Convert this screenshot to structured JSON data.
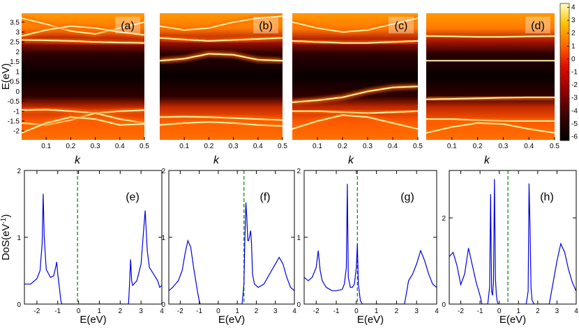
{
  "chart_data": [
    {
      "id": "a",
      "type": "heatmap",
      "panel_label": "(a)",
      "xlabel": "k",
      "ylabel": "E(eV)",
      "xlim": [
        0,
        0.5
      ],
      "ylim": [
        -2.45,
        3.95
      ],
      "x_ticks": [
        "0.1",
        "0.2",
        "0.3",
        "0.4",
        "0.5"
      ],
      "y_ticks": [
        "-2",
        "-1.5",
        "-1",
        "-0.5",
        "0",
        "0.5",
        "1",
        "1.5",
        "2",
        "2.5",
        "3",
        "3.5"
      ],
      "colorbar": {
        "range": [
          -6.3,
          4.3
        ],
        "ticks": [
          "-6",
          "-5",
          "-4",
          "-3",
          "-2",
          "-1",
          "0",
          "1",
          "2",
          "3",
          "4"
        ]
      },
      "bands": [
        {
          "k": [
            0,
            0.1,
            0.2,
            0.3,
            0.4,
            0.5
          ],
          "E": [
            2.6,
            2.58,
            2.55,
            2.5,
            2.47,
            2.45
          ]
        },
        {
          "k": [
            0,
            0.1,
            0.2,
            0.3,
            0.4,
            0.5
          ],
          "E": [
            -0.95,
            -0.92,
            -1.0,
            -1.1,
            -1.0,
            -0.95
          ]
        },
        {
          "k": [
            0,
            0.1,
            0.2,
            0.3,
            0.4,
            0.5
          ],
          "E": [
            -1.6,
            -1.7,
            -1.45,
            -1.1,
            -1.4,
            -1.6
          ]
        },
        {
          "k": [
            0,
            0.1,
            0.2,
            0.3,
            0.4,
            0.5
          ],
          "E": [
            -2.1,
            -1.6,
            -1.3,
            -1.4,
            -1.7,
            -1.65
          ]
        },
        {
          "k": [
            0,
            0.1,
            0.2,
            0.3,
            0.4,
            0.5
          ],
          "E": [
            3.7,
            3.4,
            3.05,
            2.9,
            3.2,
            3.5
          ]
        },
        {
          "k": [
            0,
            0.1,
            0.2,
            0.3,
            0.4,
            0.5
          ],
          "E": [
            2.8,
            3.1,
            3.3,
            3.2,
            3.0,
            2.85
          ]
        }
      ]
    },
    {
      "id": "b",
      "type": "heatmap",
      "panel_label": "(b)",
      "xlabel": "k",
      "xlim": [
        0,
        0.5
      ],
      "ylim": [
        -2.45,
        3.95
      ],
      "x_ticks": [
        "0.1",
        "0.2",
        "0.3",
        "0.4",
        "0.5"
      ],
      "bands": [
        {
          "k": [
            0,
            0.1,
            0.2,
            0.3,
            0.4,
            0.5
          ],
          "E": [
            1.55,
            1.65,
            1.9,
            1.85,
            1.6,
            1.55
          ]
        },
        {
          "k": [
            0,
            0.1,
            0.2,
            0.3,
            0.4,
            0.5
          ],
          "E": [
            2.7,
            2.62,
            2.55,
            2.6,
            2.65,
            2.7
          ]
        },
        {
          "k": [
            0,
            0.1,
            0.2,
            0.3,
            0.4,
            0.5
          ],
          "E": [
            -1.3,
            -1.28,
            -1.3,
            -1.35,
            -1.4,
            -1.45
          ]
        },
        {
          "k": [
            0,
            0.1,
            0.2,
            0.3,
            0.4,
            0.5
          ],
          "E": [
            -1.7,
            -1.6,
            -1.55,
            -1.6,
            -1.7,
            -1.75
          ]
        },
        {
          "k": [
            0,
            0.1,
            0.2,
            0.3,
            0.4,
            0.5
          ],
          "E": [
            3.3,
            3.1,
            3.2,
            3.5,
            3.7,
            3.8
          ]
        }
      ]
    },
    {
      "id": "c",
      "type": "heatmap",
      "panel_label": "(c)",
      "xlabel": "k",
      "xlim": [
        0,
        0.5
      ],
      "ylim": [
        -2.45,
        3.95
      ],
      "x_ticks": [
        "0.1",
        "0.2",
        "0.3",
        "0.4",
        "0.5"
      ],
      "bands": [
        {
          "k": [
            0,
            0.1,
            0.2,
            0.3,
            0.4,
            0.5
          ],
          "E": [
            -0.55,
            -0.45,
            -0.3,
            0.0,
            0.2,
            0.25
          ]
        },
        {
          "k": [
            0,
            0.1,
            0.2,
            0.3,
            0.4,
            0.5
          ],
          "E": [
            2.55,
            2.5,
            2.45,
            2.45,
            2.5,
            2.55
          ]
        },
        {
          "k": [
            0,
            0.1,
            0.2,
            0.3,
            0.4,
            0.5
          ],
          "E": [
            -1.0,
            -1.0,
            -1.05,
            -1.1,
            -1.05,
            -1.0
          ]
        },
        {
          "k": [
            0,
            0.1,
            0.2,
            0.3,
            0.4,
            0.5
          ],
          "E": [
            -1.9,
            -1.5,
            -1.2,
            -1.3,
            -1.6,
            -1.9
          ]
        },
        {
          "k": [
            0,
            0.1,
            0.2,
            0.3,
            0.4,
            0.5
          ],
          "E": [
            3.5,
            3.2,
            3.0,
            3.1,
            3.4,
            3.7
          ]
        }
      ]
    },
    {
      "id": "d",
      "type": "heatmap",
      "panel_label": "(d)",
      "xlabel": "k",
      "xlim": [
        0,
        0.5
      ],
      "ylim": [
        -2.45,
        3.95
      ],
      "x_ticks": [
        "0.1",
        "0.2",
        "0.3",
        "0.4",
        "0.5"
      ],
      "bands": [
        {
          "k": [
            0,
            0.1,
            0.2,
            0.3,
            0.4,
            0.5
          ],
          "E": [
            1.55,
            1.55,
            1.55,
            1.55,
            1.55,
            1.55
          ]
        },
        {
          "k": [
            0,
            0.1,
            0.2,
            0.3,
            0.4,
            0.5
          ],
          "E": [
            -0.4,
            -0.38,
            -0.35,
            -0.32,
            -0.3,
            -0.3
          ]
        },
        {
          "k": [
            0,
            0.1,
            0.2,
            0.3,
            0.4,
            0.5
          ],
          "E": [
            2.8,
            2.78,
            2.75,
            2.75,
            2.78,
            2.8
          ]
        },
        {
          "k": [
            0,
            0.1,
            0.2,
            0.3,
            0.4,
            0.5
          ],
          "E": [
            -1.4,
            -1.4,
            -1.45,
            -1.5,
            -1.5,
            -1.5
          ]
        },
        {
          "k": [
            0,
            0.1,
            0.2,
            0.3,
            0.4,
            0.5
          ],
          "E": [
            -2.1,
            -1.8,
            -1.6,
            -1.65,
            -1.9,
            -2.1
          ]
        }
      ]
    },
    {
      "id": "e",
      "type": "line",
      "panel_label": "(e)",
      "xlabel": "E(eV)",
      "ylabel": "DoS(eV",
      "ylabel_sup": "-1",
      "ylabel_close": ")",
      "xlim": [
        -2.6,
        4
      ],
      "ylim": [
        0,
        2
      ],
      "x_ticks": [
        "-2",
        "-1",
        "0",
        "1",
        "2",
        "3",
        "4"
      ],
      "y_ticks": [
        "0",
        "1",
        "2"
      ],
      "fermi_level": -0.05,
      "series": [
        {
          "x": [
            -2.6,
            -2.3,
            -2.0,
            -1.85,
            -1.75,
            -1.7,
            -1.65,
            -1.55,
            -1.35,
            -1.2,
            -1.1,
            -1.05,
            -1.0,
            -0.9,
            -0.85,
            -0.8,
            2.4,
            2.45,
            2.5,
            2.55,
            2.6,
            2.8,
            3.0,
            3.1,
            3.2,
            3.3,
            3.4,
            3.6,
            3.8,
            3.9,
            4.0
          ],
          "y": [
            0.3,
            0.3,
            0.38,
            0.5,
            0.9,
            1.65,
            1.0,
            0.52,
            0.4,
            0.42,
            0.55,
            0.63,
            0.45,
            0.2,
            0.05,
            0,
            0,
            0.3,
            0.67,
            0.35,
            0.28,
            0.35,
            0.6,
            1.0,
            1.4,
            0.8,
            0.55,
            0.45,
            0.35,
            0.25,
            0.28
          ]
        }
      ]
    },
    {
      "id": "f",
      "type": "line",
      "panel_label": "(f)",
      "xlabel": "E(eV)",
      "xlim": [
        -2.6,
        4
      ],
      "ylim": [
        0,
        2
      ],
      "x_ticks": [
        "-2",
        "-1",
        "0",
        "1",
        "2",
        "3",
        "4"
      ],
      "y_ticks": [
        "0",
        "1",
        "2"
      ],
      "fermi_level": 1.35,
      "series": [
        {
          "x": [
            -2.6,
            -2.4,
            -2.1,
            -1.9,
            -1.75,
            -1.6,
            -1.45,
            -1.3,
            -1.1,
            -1.0,
            -0.95,
            1.25,
            1.35,
            1.4,
            1.45,
            1.5,
            1.55,
            1.6,
            1.7,
            1.75,
            1.8,
            1.9,
            2.1,
            2.4,
            2.6,
            2.8,
            3.0,
            3.2,
            3.4,
            3.6,
            3.8,
            4.0
          ],
          "y": [
            0.2,
            0.25,
            0.35,
            0.5,
            0.75,
            0.95,
            0.85,
            0.55,
            0.2,
            0.05,
            0,
            0,
            0.3,
            1.0,
            1.52,
            1.3,
            0.95,
            0.95,
            1.1,
            0.9,
            0.45,
            0.3,
            0.25,
            0.3,
            0.4,
            0.5,
            0.6,
            0.7,
            0.6,
            0.4,
            0.25,
            0.2
          ]
        }
      ]
    },
    {
      "id": "g",
      "type": "line",
      "panel_label": "(g)",
      "xlabel": "E(eV)",
      "xlim": [
        -2.6,
        4
      ],
      "ylim": [
        0,
        2
      ],
      "x_ticks": [
        "-2",
        "-1",
        "0",
        "1",
        "2",
        "3",
        "4"
      ],
      "y_ticks": [
        "0",
        "1",
        "2"
      ],
      "fermi_level": 0.05,
      "series": [
        {
          "x": [
            -2.6,
            -2.4,
            -2.2,
            -2.0,
            -1.9,
            -1.8,
            -1.7,
            -1.5,
            -1.2,
            -1.0,
            -0.7,
            -0.6,
            -0.5,
            -0.45,
            -0.4,
            -0.3,
            -0.2,
            -0.1,
            0.0,
            0.05,
            0.1,
            0.2,
            0.3,
            2.4,
            2.6,
            2.8,
            3.0,
            3.2,
            3.4,
            3.6,
            3.8,
            4.0
          ],
          "y": [
            0.4,
            0.35,
            0.4,
            0.55,
            0.8,
            0.5,
            0.35,
            0.25,
            0.2,
            0.2,
            0.22,
            0.3,
            0.55,
            1.8,
            0.4,
            0.25,
            0.25,
            0.3,
            0.55,
            0.9,
            0.3,
            0.05,
            0,
            0,
            0.35,
            0.45,
            0.6,
            0.8,
            0.65,
            0.45,
            0.3,
            0.25
          ]
        }
      ]
    },
    {
      "id": "h",
      "type": "line",
      "panel_label": "(h)",
      "xlabel": "E(eV)",
      "xlim": [
        -2.6,
        4
      ],
      "ylim": [
        0,
        3.1
      ],
      "x_ticks": [
        "-2",
        "-1",
        "0",
        "1",
        "2",
        "3",
        "4"
      ],
      "y_ticks": [
        "0",
        "2"
      ],
      "fermi_level": 0.45,
      "series": [
        {
          "x": [
            -2.6,
            -2.4,
            -2.2,
            -2.0,
            -1.8,
            -1.6,
            -1.4,
            -1.2,
            -1.0,
            -0.9,
            -0.6,
            -0.5,
            -0.45,
            -0.4,
            -0.35,
            -0.3,
            -0.25,
            -0.2,
            -0.15,
            -0.1,
            -0.05,
            1.4,
            1.5,
            1.55,
            1.6,
            1.65,
            1.7,
            1.8,
            2.6,
            2.8,
            3.0,
            3.2,
            3.4,
            3.6,
            3.8,
            4.0
          ],
          "y": [
            1.1,
            1.2,
            0.9,
            0.45,
            0.7,
            1.3,
            0.9,
            0.5,
            0.2,
            0,
            0,
            0.4,
            2.55,
            0.3,
            0.2,
            0.5,
            2.9,
            0.6,
            0.2,
            0.05,
            0,
            0,
            0.3,
            2.8,
            1.8,
            0.4,
            0.1,
            0,
            0,
            0.5,
            1.0,
            1.4,
            1.2,
            0.8,
            0.5,
            0.3
          ]
        }
      ]
    }
  ]
}
